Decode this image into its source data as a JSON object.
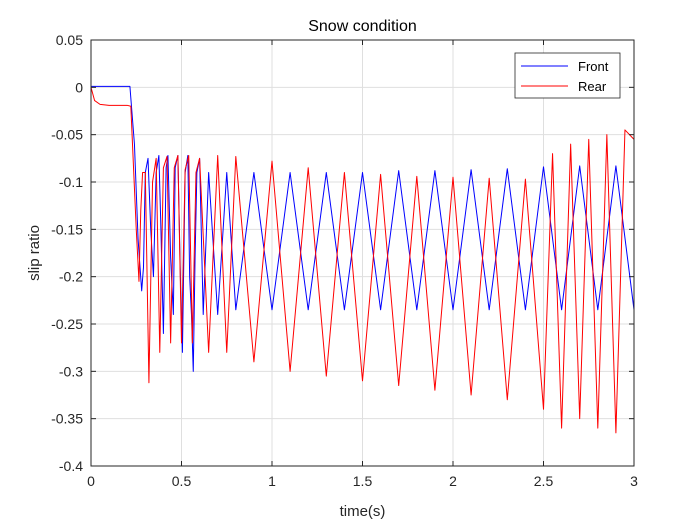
{
  "chart_data": {
    "type": "line",
    "title": "Snow condition",
    "xlabel": "time(s)",
    "ylabel": "slip ratio",
    "xlim": [
      0,
      3
    ],
    "ylim": [
      -0.4,
      0.05
    ],
    "xticks": [
      0,
      0.5,
      1,
      1.5,
      2,
      2.5,
      3
    ],
    "xtick_labels": [
      "0",
      "0.5",
      "1",
      "1.5",
      "2",
      "2.5",
      "3"
    ],
    "yticks": [
      0.05,
      0,
      -0.05,
      -0.1,
      -0.15,
      -0.2,
      -0.25,
      -0.3,
      -0.35,
      -0.4
    ],
    "ytick_labels": [
      "0.05",
      "0",
      "-0.05",
      "-0.1",
      "-0.15",
      "-0.2",
      "-0.25",
      "-0.3",
      "-0.35",
      "-0.4"
    ],
    "grid": true,
    "legend_position": "top-right",
    "series": [
      {
        "name": "Front",
        "color": "#0000ff",
        "x": [
          0,
          0.05,
          0.1,
          0.15,
          0.2,
          0.215,
          0.24,
          0.26,
          0.28,
          0.29,
          0.3,
          0.315,
          0.33,
          0.345,
          0.36,
          0.375,
          0.385,
          0.4,
          0.415,
          0.425,
          0.44,
          0.455,
          0.465,
          0.48,
          0.495,
          0.505,
          0.52,
          0.535,
          0.545,
          0.555,
          0.565,
          0.575,
          0.585,
          0.6,
          0.62,
          0.65,
          0.7,
          0.75,
          0.8,
          0.9,
          1.0,
          1.1,
          1.2,
          1.3,
          1.4,
          1.5,
          1.6,
          1.7,
          1.8,
          1.9,
          2.0,
          2.1,
          2.2,
          2.3,
          2.4,
          2.5,
          2.6,
          2.7,
          2.8,
          2.9,
          3.0
        ],
        "values": [
          0.001,
          0.001,
          0.001,
          0.001,
          0.001,
          0.001,
          -0.06,
          -0.16,
          -0.215,
          -0.19,
          -0.09,
          -0.075,
          -0.15,
          -0.2,
          -0.09,
          -0.072,
          -0.14,
          -0.26,
          -0.085,
          -0.072,
          -0.18,
          -0.24,
          -0.085,
          -0.072,
          -0.21,
          -0.28,
          -0.09,
          -0.072,
          -0.2,
          -0.24,
          -0.3,
          -0.18,
          -0.09,
          -0.075,
          -0.24,
          -0.09,
          -0.24,
          -0.09,
          -0.235,
          -0.09,
          -0.235,
          -0.09,
          -0.235,
          -0.09,
          -0.235,
          -0.09,
          -0.235,
          -0.088,
          -0.235,
          -0.088,
          -0.235,
          -0.087,
          -0.235,
          -0.086,
          -0.235,
          -0.084,
          -0.235,
          -0.083,
          -0.235,
          -0.083,
          -0.235
        ]
      },
      {
        "name": "Rear",
        "color": "#ff0000",
        "x": [
          0,
          0.02,
          0.05,
          0.1,
          0.15,
          0.2,
          0.22,
          0.25,
          0.265,
          0.275,
          0.285,
          0.3,
          0.32,
          0.34,
          0.36,
          0.38,
          0.4,
          0.42,
          0.44,
          0.46,
          0.48,
          0.5,
          0.52,
          0.54,
          0.56,
          0.58,
          0.6,
          0.65,
          0.7,
          0.75,
          0.8,
          0.9,
          1.0,
          1.1,
          1.2,
          1.3,
          1.4,
          1.5,
          1.6,
          1.7,
          1.8,
          1.9,
          2.0,
          2.1,
          2.2,
          2.3,
          2.4,
          2.5,
          2.55,
          2.6,
          2.65,
          2.7,
          2.75,
          2.8,
          2.85,
          2.9,
          2.95,
          3.0
        ],
        "values": [
          0,
          -0.014,
          -0.018,
          -0.019,
          -0.019,
          -0.019,
          -0.02,
          -0.15,
          -0.205,
          -0.13,
          -0.09,
          -0.09,
          -0.312,
          -0.1,
          -0.075,
          -0.28,
          -0.085,
          -0.073,
          -0.27,
          -0.085,
          -0.072,
          -0.27,
          -0.087,
          -0.072,
          -0.27,
          -0.09,
          -0.075,
          -0.28,
          -0.072,
          -0.28,
          -0.073,
          -0.29,
          -0.078,
          -0.3,
          -0.085,
          -0.305,
          -0.09,
          -0.31,
          -0.092,
          -0.315,
          -0.094,
          -0.32,
          -0.095,
          -0.325,
          -0.096,
          -0.33,
          -0.097,
          -0.34,
          -0.07,
          -0.36,
          -0.06,
          -0.35,
          -0.055,
          -0.36,
          -0.05,
          -0.365,
          -0.045,
          -0.055
        ]
      }
    ]
  }
}
